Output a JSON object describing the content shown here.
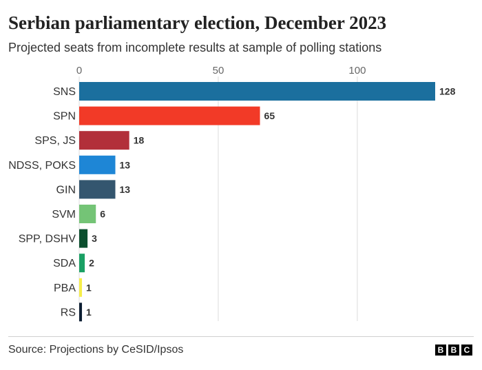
{
  "chart_data": {
    "type": "bar",
    "orientation": "horizontal",
    "title": "Serbian parliamentary election, December 2023",
    "subtitle": "Projected seats from incomplete results at sample of polling stations",
    "xlabel": "",
    "ylabel": "",
    "xlim": [
      0,
      128
    ],
    "xticks": [
      0,
      50,
      100
    ],
    "grid": true,
    "categories": [
      "SNS",
      "SPN",
      "SPS, JS",
      "NDSS, POKS",
      "GIN",
      "SVM",
      "SPP, DSHV",
      "SDA",
      "PBA",
      "RS"
    ],
    "values": [
      128,
      65,
      18,
      13,
      13,
      6,
      3,
      2,
      1,
      1
    ],
    "colors": [
      "#1b6f9e",
      "#f23a27",
      "#b22f3a",
      "#1e86d6",
      "#34566f",
      "#74c476",
      "#0b4f2e",
      "#1aa064",
      "#f6ee4a",
      "#0d1f33"
    ]
  },
  "footer": {
    "source": "Source: Projections by CeSID/Ipsos",
    "logo_letters": [
      "B",
      "B",
      "C"
    ]
  }
}
